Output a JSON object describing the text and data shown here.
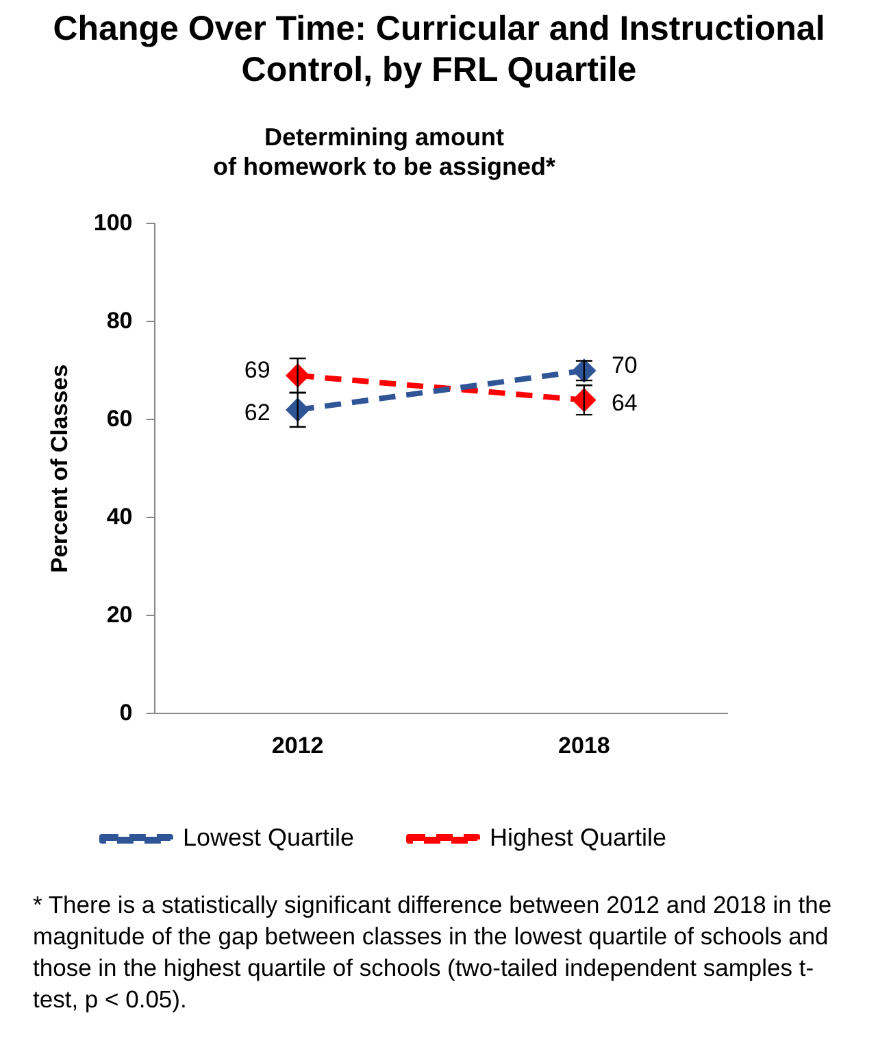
{
  "chart_data": {
    "type": "line",
    "title": "Change Over Time: Curricular and Instructional Control, by FRL Quartile",
    "subtitle": "Determining amount\nof homework to be assigned*",
    "ylabel": "Percent of Classes",
    "categories": [
      "2012",
      "2018"
    ],
    "series": [
      {
        "name": "Lowest Quartile",
        "color": "#2f5597",
        "values": [
          62,
          70
        ],
        "errors": [
          3.5,
          2
        ]
      },
      {
        "name": "Highest Quartile",
        "color": "#ff0000",
        "values": [
          69,
          64
        ],
        "errors": [
          3.5,
          3
        ]
      }
    ],
    "ylim": [
      0,
      100
    ],
    "yticks": [
      0,
      20,
      40,
      60,
      80,
      100
    ],
    "grid": false,
    "legend": "bottom",
    "marker": "diamond",
    "line_style": "dashed",
    "data_labels": true,
    "annotations": [
      "* There is a statistically significant difference between 2012 and 2018 in the magnitude of the gap between classes in the lowest quartile of schools and those in the highest quartile of schools (two-tailed independent samples t-test, p < 0.05)."
    ]
  }
}
